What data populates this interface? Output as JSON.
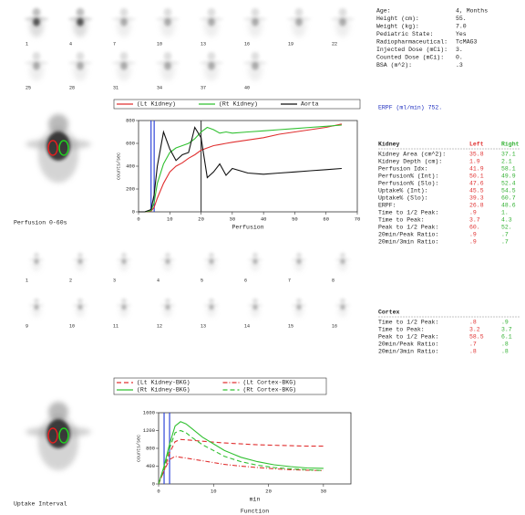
{
  "patient_info": [
    {
      "label": "Age:",
      "value": "4, Months"
    },
    {
      "label": "Height (cm):",
      "value": "55."
    },
    {
      "label": "Weight (kg):",
      "value": "7.0"
    },
    {
      "label": "Pediatric State:",
      "value": "Yes"
    },
    {
      "label": "Radiopharmaceutical:",
      "value": "TcMAG3"
    },
    {
      "label": "Injected Dose (mCi):",
      "value": "3."
    },
    {
      "label": "Counted Dose (mCi):",
      "value": "0."
    },
    {
      "label": "BSA (m^2):",
      "value": ".3"
    }
  ],
  "top_frames": [
    "1",
    "4",
    "7",
    "10",
    "13",
    "16",
    "19",
    "22",
    "25",
    "28",
    "31",
    "34",
    "37",
    "40"
  ],
  "middle_frames": [
    "1",
    "2",
    "3",
    "4",
    "5",
    "6",
    "7",
    "8",
    "9",
    "10",
    "11",
    "12",
    "13",
    "14",
    "15",
    "16"
  ],
  "perfusion_image_label": "Perfusion 0-60s",
  "uptake_image_label": "Uptake Interval",
  "erpf": "ERPF (ml/min) 752.",
  "kidney_table": {
    "header": [
      "Kidney",
      "Left",
      "Right"
    ],
    "rows": [
      [
        "Kidney Area (cm^2):",
        "35.8",
        "37.1"
      ],
      [
        "Kidney Depth (cm):",
        "1.9",
        "2.1"
      ],
      [
        "Perfusion Idx:",
        "41.9",
        "58.1"
      ],
      [
        "Perfusion% (Int):",
        "50.1",
        "49.9"
      ],
      [
        "Perfusion% (Slo):",
        "47.6",
        "52.4"
      ],
      [
        "Uptake% (Int):",
        "45.5",
        "54.5"
      ],
      [
        "Uptake% (Slo):",
        "39.3",
        "60.7"
      ],
      [
        "ERPF:",
        "26.8",
        "48.6"
      ],
      [
        "Time to 1/2 Peak:",
        ".9",
        "1."
      ],
      [
        "Time to Peak:",
        "3.7",
        "4.3"
      ],
      [
        "Peak to 1/2 Peak:",
        "60.",
        "52."
      ],
      [
        "20min/Peak Ratio:",
        ".9",
        ".7"
      ],
      [
        "20min/3min Ratio:",
        ".9",
        ".7"
      ]
    ]
  },
  "cortex_table": {
    "header": [
      "Cortex"
    ],
    "rows": [
      [
        "Time to 1/2 Peak:",
        ".8",
        ".9"
      ],
      [
        "Time to Peak:",
        "3.2",
        "3.7"
      ],
      [
        "Peak to 1/2 Peak:",
        "58.5",
        "6.1"
      ],
      [
        "20min/Peak Ratio:",
        ".7",
        ".8"
      ],
      [
        "20min/3min Ratio:",
        ".8",
        ".8"
      ]
    ]
  },
  "chart_data": [
    {
      "type": "line",
      "xlabel": "Perfusion",
      "ylabel": "counts/sec",
      "x": [
        0,
        2,
        4,
        5,
        6,
        8,
        10,
        12,
        14,
        16,
        18,
        20,
        22,
        24,
        26,
        28,
        30,
        35,
        40,
        45,
        50,
        55,
        60,
        65
      ],
      "xlim": [
        0,
        70
      ],
      "xticks": [
        0,
        10,
        20,
        30,
        40,
        50,
        60,
        70
      ],
      "ylim": [
        0,
        800
      ],
      "yticks": [
        0,
        200,
        400,
        600,
        800
      ],
      "markers": [
        {
          "x": 4,
          "color": "#3046d8"
        },
        {
          "x": 5,
          "color": "#3046d8"
        },
        {
          "x": 20,
          "color": "#444444"
        }
      ],
      "series": [
        {
          "name": "(Lt Kidney)",
          "color": "#e03030",
          "style": "solid",
          "values": [
            0,
            0,
            5,
            40,
            120,
            250,
            350,
            400,
            430,
            470,
            500,
            540,
            560,
            580,
            590,
            600,
            610,
            630,
            650,
            680,
            700,
            720,
            740,
            770
          ]
        },
        {
          "name": "(Rt Kidney)",
          "color": "#30c030",
          "style": "solid",
          "values": [
            0,
            0,
            10,
            80,
            250,
            420,
            520,
            560,
            580,
            600,
            640,
            700,
            740,
            720,
            690,
            700,
            690,
            700,
            710,
            720,
            730,
            740,
            750,
            760
          ]
        },
        {
          "name": "Aorta",
          "color": "#111111",
          "style": "solid",
          "values": [
            0,
            0,
            20,
            150,
            400,
            700,
            550,
            450,
            500,
            520,
            740,
            650,
            300,
            350,
            420,
            320,
            380,
            340,
            330,
            340,
            350,
            360,
            370,
            380
          ]
        }
      ]
    },
    {
      "type": "line",
      "title": "Function",
      "xlabel": "min",
      "ylabel": "counts/sec",
      "x": [
        0,
        1,
        2,
        3,
        4,
        5,
        6,
        8,
        10,
        12,
        15,
        18,
        21,
        24,
        27,
        30
      ],
      "xlim": [
        0,
        35
      ],
      "xticks": [
        0,
        10,
        20,
        30
      ],
      "ylim": [
        0,
        1600
      ],
      "yticks": [
        0,
        400,
        800,
        1200,
        1600
      ],
      "markers": [
        {
          "x": 1,
          "color": "#3046d8"
        },
        {
          "x": 2,
          "color": "#3046d8"
        }
      ],
      "series": [
        {
          "name": "(Lt Kidney-BKG)",
          "color": "#e03030",
          "style": "dashed",
          "values": [
            0,
            300,
            700,
            950,
            1000,
            990,
            980,
            960,
            940,
            920,
            900,
            880,
            870,
            860,
            850,
            850
          ]
        },
        {
          "name": "(Rt Kidney-BKG)",
          "color": "#30c030",
          "style": "solid",
          "values": [
            0,
            400,
            900,
            1300,
            1400,
            1350,
            1250,
            1050,
            900,
            750,
            600,
            500,
            430,
            390,
            360,
            350
          ]
        },
        {
          "name": "(Lt Cortex-BKG)",
          "color": "#e03030",
          "style": "dashdot",
          "values": [
            0,
            300,
            550,
            620,
            600,
            580,
            560,
            520,
            480,
            440,
            400,
            370,
            340,
            320,
            310,
            300
          ]
        },
        {
          "name": "(Rt Cortex-BKG)",
          "color": "#30c030",
          "style": "dashed",
          "values": [
            0,
            350,
            800,
            1150,
            1200,
            1150,
            1050,
            880,
            750,
            620,
            500,
            420,
            370,
            340,
            320,
            300
          ]
        }
      ]
    }
  ]
}
